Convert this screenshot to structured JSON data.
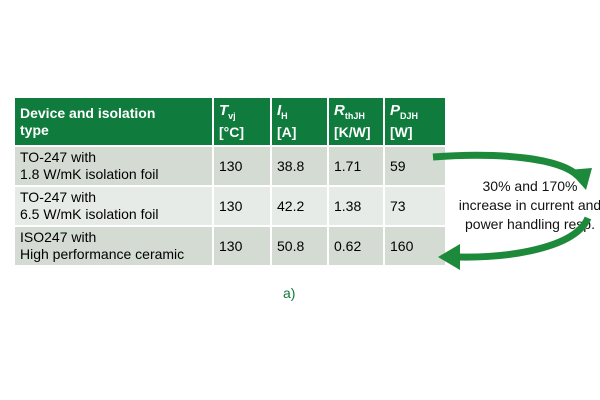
{
  "table": {
    "header": [
      {
        "lines": [
          "Device and isolation",
          "type"
        ]
      },
      {
        "symbol": "T",
        "subscript": "vj",
        "unit": "[°C]"
      },
      {
        "symbol": "I",
        "subscript": "H",
        "unit": "[A]"
      },
      {
        "symbol": "R",
        "subscript": "thJH",
        "unit": "[K/W]"
      },
      {
        "symbol": "P",
        "subscript": "DJH",
        "unit": "[W]"
      }
    ],
    "rows": [
      [
        [
          "TO-247 with",
          "1.8 W/mK isolation foil"
        ],
        130,
        38.8,
        1.71,
        59
      ],
      [
        [
          "TO-247 with",
          "6.5 W/mK isolation foil"
        ],
        130,
        42.2,
        1.38,
        73
      ],
      [
        [
          "ISO247 with",
          "High performance ceramic"
        ],
        130,
        50.8,
        0.62,
        160
      ]
    ],
    "caption": "a)"
  },
  "annotation": [
    "30% and 170%",
    "increase in current and",
    "power handling resp."
  ]
}
